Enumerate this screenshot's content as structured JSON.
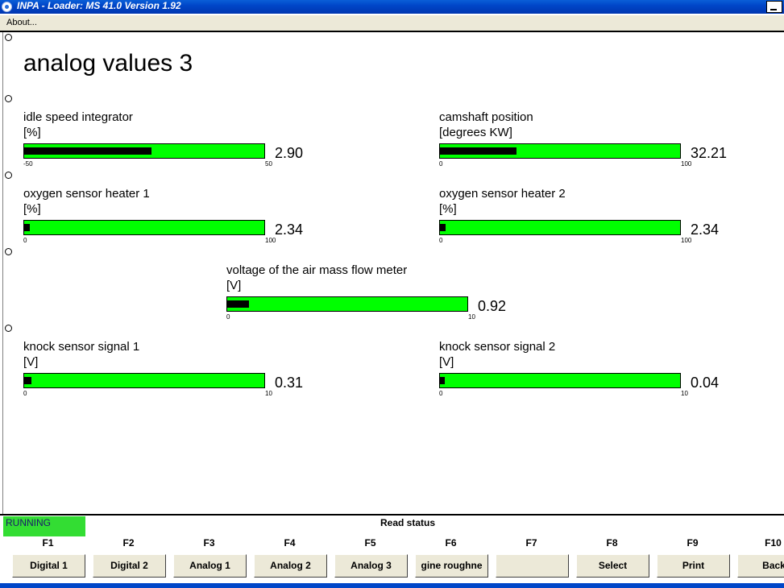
{
  "window": {
    "title": "INPA - Loader:  MS 41.0 Version 1.92"
  },
  "menu": {
    "items": [
      "About..."
    ]
  },
  "page": {
    "title": "analog values 3"
  },
  "gauges": [
    {
      "label": "idle speed integrator",
      "unit": "[%]",
      "min": "-50",
      "max": "50",
      "value": "2.90",
      "fill_fraction": 0.53
    },
    {
      "label": "camshaft position",
      "unit": "[degrees KW]",
      "min": "0",
      "max": "100",
      "value": "32.21",
      "fill_fraction": 0.32
    },
    {
      "label": "oxygen sensor heater 1",
      "unit": "[%]",
      "min": "0",
      "max": "100",
      "value": "2.34",
      "fill_fraction": 0.023
    },
    {
      "label": "oxygen sensor heater 2",
      "unit": "[%]",
      "min": "0",
      "max": "100",
      "value": "2.34",
      "fill_fraction": 0.023
    },
    {
      "label": "voltage of the air mass flow meter",
      "unit": "[V]",
      "min": "0",
      "max": "10",
      "value": "0.92",
      "fill_fraction": 0.092
    },
    {
      "label": "knock sensor signal 1",
      "unit": "[V]",
      "min": "0",
      "max": "10",
      "value": "0.31",
      "fill_fraction": 0.031
    },
    {
      "label": "knock sensor signal 2",
      "unit": "[V]",
      "min": "0",
      "max": "10",
      "value": "0.04",
      "fill_fraction": 0.004
    }
  ],
  "status": {
    "state": "RUNNING",
    "message": "Read status"
  },
  "function_keys": [
    {
      "key": "F1",
      "label": "Digital 1"
    },
    {
      "key": "F2",
      "label": "Digital 2"
    },
    {
      "key": "F3",
      "label": "Analog 1"
    },
    {
      "key": "F4",
      "label": "Analog 2"
    },
    {
      "key": "F5",
      "label": "Analog 3"
    },
    {
      "key": "F6",
      "label": "gine roughne"
    },
    {
      "key": "F7",
      "label": ""
    },
    {
      "key": "F8",
      "label": "Select"
    },
    {
      "key": "F9",
      "label": "Print"
    },
    {
      "key": "F10",
      "label": "Back"
    }
  ],
  "colors": {
    "bar_green": "#00ff00",
    "bar_fill": "#000000",
    "running_green": "#33dd33",
    "titlebar_blue": "#0046c8"
  }
}
